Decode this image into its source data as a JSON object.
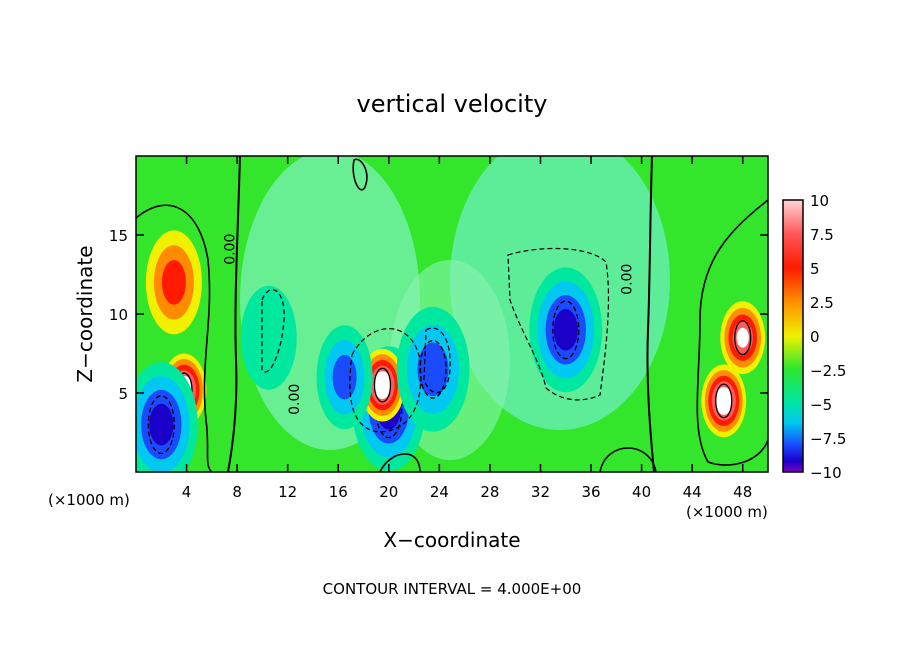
{
  "chart_data": {
    "type": "heatmap",
    "title": "vertical velocity",
    "xlabel": "X−coordinate",
    "ylabel": "Z−coordinate",
    "x_unit": "(×1000 m)",
    "x_unit_right": "(×1000 m)",
    "xlim": [
      0,
      50
    ],
    "ylim": [
      0,
      20
    ],
    "x_ticks": [
      "4",
      "8",
      "12",
      "16",
      "20",
      "24",
      "28",
      "32",
      "36",
      "40",
      "44",
      "48"
    ],
    "x_tick_values": [
      4,
      8,
      12,
      16,
      20,
      24,
      28,
      32,
      36,
      40,
      44,
      48
    ],
    "y_ticks": [
      "5",
      "10",
      "15"
    ],
    "y_tick_values": [
      5,
      10,
      15
    ],
    "colorbar": {
      "labels": [
        "10",
        "7.5",
        "5",
        "2.5",
        "0",
        "−2.5",
        "−5",
        "−7.5",
        "−10"
      ],
      "values": [
        10,
        7.5,
        5,
        2.5,
        0,
        -2.5,
        -5,
        -7.5,
        -10
      ],
      "range": [
        -10,
        10
      ]
    },
    "contour_labels": [
      {
        "text": "0.00",
        "x": 7.8,
        "z": 14.1
      },
      {
        "text": "0.00",
        "x": 12.9,
        "z": 4.6
      },
      {
        "text": "0.00",
        "x": 39.2,
        "z": 12.2
      }
    ],
    "features": [
      {
        "x": 3,
        "z": 12,
        "w": 6
      },
      {
        "x": 3.8,
        "z": 5.2,
        "w": 12
      },
      {
        "x": 2,
        "z": 3,
        "w": -8
      },
      {
        "x": 48,
        "z": 8.5,
        "w": 10
      },
      {
        "x": 46.5,
        "z": 4.5,
        "w": 12
      },
      {
        "x": 34,
        "z": 9,
        "w": -8
      },
      {
        "x": 20,
        "z": 4,
        "w": -8
      },
      {
        "x": 19.5,
        "z": 5.5,
        "w": 12
      },
      {
        "x": 23.5,
        "z": 6.5,
        "w": -7
      },
      {
        "x": 16.5,
        "z": 6,
        "w": -6
      },
      {
        "x": 10.5,
        "z": 8.5,
        "w": -3
      }
    ],
    "footer": "CONTOUR INTERVAL = 4.000E+00"
  }
}
